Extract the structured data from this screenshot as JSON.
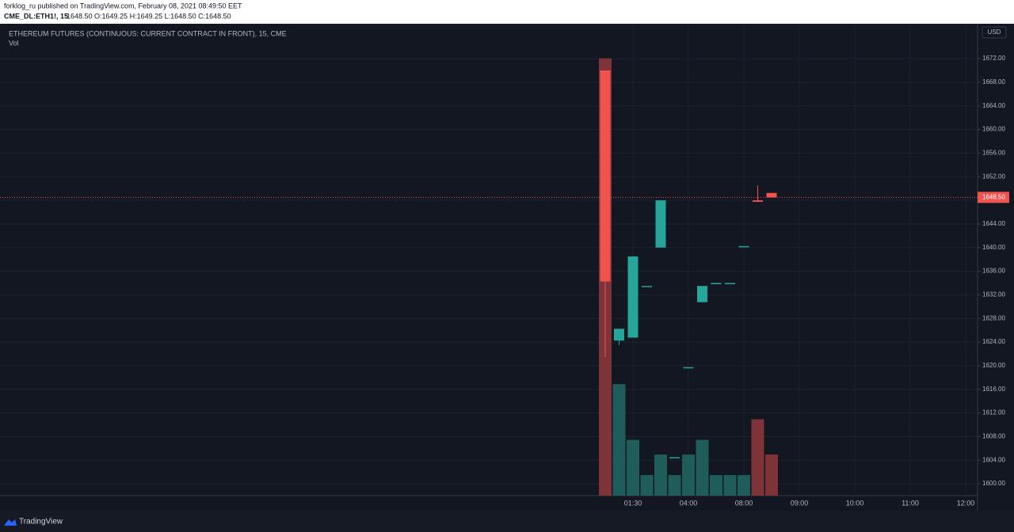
{
  "chart_data": {
    "type": "candlestick",
    "header": {
      "author_line": "forklog_ru published on TradingView.com, February 08, 2021 08:49:50 EET",
      "symbol": "CME_DL:ETH1!, 15",
      "ohlc": "1648.50 O:1649.25 H:1649.25 L:1648.50 C:1648.50"
    },
    "title": "ETHEREUM FUTURES (CONTINUOUS: CURRENT CONTRACT IN FRONT), 15, CME",
    "volume_label": "Vol",
    "currency": "USD",
    "footer": "TradingView",
    "categories": [
      null,
      null,
      "01:30",
      null,
      null,
      null,
      "04:00",
      null,
      null,
      null,
      "08:00",
      null,
      null,
      null,
      "09:00",
      null,
      null,
      null,
      "10:00",
      null,
      null,
      null,
      "11:00",
      null,
      null,
      null,
      "12:00"
    ],
    "open": [
      1670,
      1624.25,
      1624.75,
      1633.5,
      1640,
      1604.5,
      1619.75,
      1630.75,
      1634,
      1634,
      1640.25,
      1648,
      1649.25,
      null,
      null,
      null,
      null,
      null,
      null,
      null,
      null,
      null,
      null,
      null,
      null,
      null,
      null
    ],
    "high": [
      1670,
      1626.25,
      1638.5,
      1633.5,
      1648,
      1604.5,
      1619.75,
      1633.5,
      1634,
      1634,
      1640.25,
      1650.5,
      1649.25,
      null,
      null,
      null,
      null,
      null,
      null,
      null,
      null,
      null,
      null,
      null,
      null,
      null,
      null
    ],
    "low": [
      1621.5,
      1623.5,
      1624.75,
      1633.5,
      1640,
      1604.5,
      1619.75,
      1630.75,
      1634,
      1634,
      1640.25,
      1647.75,
      1648.5,
      null,
      null,
      null,
      null,
      null,
      null,
      null,
      null,
      null,
      null,
      null,
      null,
      null,
      null
    ],
    "close": [
      1634.25,
      1626.25,
      1638.5,
      1633.5,
      1648,
      1604.5,
      1619.75,
      1633.5,
      1634,
      1634,
      1640.25,
      1647.75,
      1648.5,
      null,
      null,
      null,
      null,
      null,
      null,
      null,
      null,
      null,
      null,
      null,
      null,
      null,
      null
    ],
    "volume": [
      149,
      38,
      19,
      7,
      14,
      7,
      14,
      19,
      7,
      7,
      7,
      26,
      14,
      null,
      null,
      null,
      null,
      null,
      null,
      null,
      null,
      null,
      null,
      null,
      null,
      null,
      null
    ],
    "volume_lim": [
      0,
      160
    ],
    "up_color": "#26a69a",
    "down_color": "#ef5350",
    "up_volume_color": "#1f5d5a",
    "down_volume_color": "#7d3337",
    "ylim": [
      1598,
      1677.5
    ],
    "yticks": [
      {
        "value": 1600,
        "label": "1600.00"
      },
      {
        "value": 1604,
        "label": "1604.00"
      },
      {
        "value": 1608,
        "label": "1608.00"
      },
      {
        "value": 1612,
        "label": "1612.00"
      },
      {
        "value": 1616,
        "label": "1616.00"
      },
      {
        "value": 1620,
        "label": "1620.00"
      },
      {
        "value": 1624,
        "label": "1624.00"
      },
      {
        "value": 1628,
        "label": "1628.00"
      },
      {
        "value": 1632,
        "label": "1632.00"
      },
      {
        "value": 1636,
        "label": "1636.00"
      },
      {
        "value": 1640,
        "label": "1640.00"
      },
      {
        "value": 1644,
        "label": "1644.00"
      },
      {
        "value": 1648,
        "label": "1648.00"
      },
      {
        "value": 1652,
        "label": "1652.00"
      },
      {
        "value": 1656,
        "label": "1656.00"
      },
      {
        "value": 1660,
        "label": "1660.00"
      },
      {
        "value": 1664,
        "label": "1664.00"
      },
      {
        "value": 1668,
        "label": "1668.00"
      },
      {
        "value": 1672,
        "label": "1672.00"
      }
    ],
    "last_price": {
      "value": 1648.5,
      "label": "1648.50"
    },
    "grid": true
  }
}
